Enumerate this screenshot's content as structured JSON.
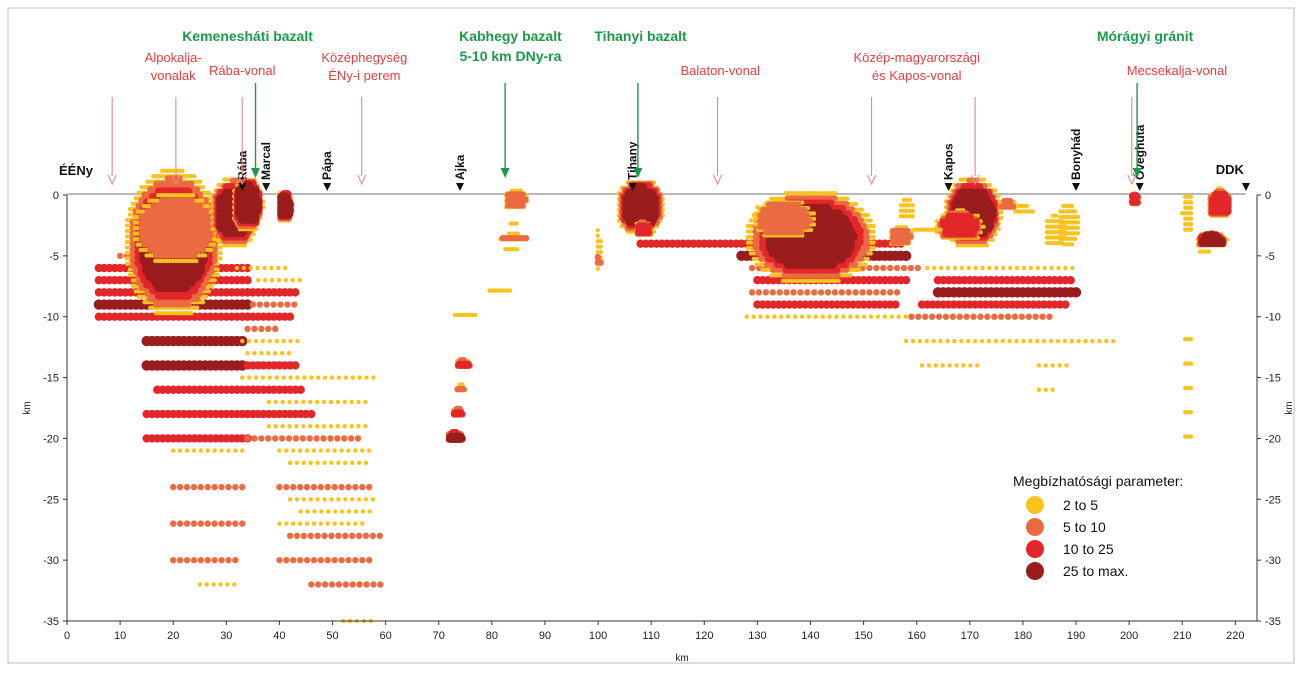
{
  "chart_data": {
    "type": "scatter",
    "x_axis": {
      "label": "km",
      "range": [
        0,
        220
      ],
      "ticks": [
        0,
        10,
        20,
        30,
        40,
        50,
        60,
        70,
        80,
        90,
        100,
        110,
        120,
        130,
        140,
        150,
        160,
        170,
        180,
        190,
        200,
        210,
        220
      ]
    },
    "y_axis": {
      "label": "km",
      "range": [
        -35,
        0
      ],
      "ticks": [
        0,
        -5,
        -10,
        -15,
        -20,
        -25,
        -30,
        -35
      ],
      "mirrored_right": true
    },
    "grid": false,
    "ends": [
      {
        "label": "ÉÉNy",
        "x": 0
      },
      {
        "label": "DDK",
        "x": 222
      }
    ],
    "localities": [
      {
        "label": "Rába",
        "x": 33
      },
      {
        "label": "Marcal",
        "x": 37.5
      },
      {
        "label": "Pápa",
        "x": 49
      },
      {
        "label": "Ajka",
        "x": 74
      },
      {
        "label": "Tihany",
        "x": 106.5
      },
      {
        "label": "Kapos",
        "x": 166
      },
      {
        "label": "Bonyhád",
        "x": 190
      },
      {
        "label": "Óveghuta",
        "x": 202
      }
    ],
    "tectonic_lines": [
      {
        "lines": [
          "Alpokalja-",
          "vonalak"
        ],
        "x": 20,
        "arrows_x": [
          8.5,
          20.5
        ]
      },
      {
        "lines": [
          "Rába-vonal"
        ],
        "x": 33,
        "arrows_x": [
          33
        ]
      },
      {
        "lines": [
          "Középhegység",
          "ÉNy-i perem"
        ],
        "x": 56,
        "arrows_x": [
          55.5
        ]
      },
      {
        "lines": [
          "Balaton-vonal"
        ],
        "x": 123,
        "arrows_x": [
          122.5
        ]
      },
      {
        "lines": [
          "Közép-magyarországi",
          "és Kapos-vonal"
        ],
        "x": 160,
        "arrows_x": [
          151.5,
          171
        ]
      },
      {
        "lines": [
          "Mecsekalja-vonal"
        ],
        "x": 209,
        "arrows_x": [
          200.5
        ]
      }
    ],
    "rock_units": [
      {
        "lines": [
          "Kemenesháti bazalt"
        ],
        "x": 34,
        "arrow_x": 35.5
      },
      {
        "lines": [
          "Kabhegy bazalt",
          "5-10 km DNy-ra"
        ],
        "x": 83.5,
        "arrow_x": 82.5
      },
      {
        "lines": [
          "Tihanyi bazalt"
        ],
        "x": 108,
        "arrow_x": 107.5
      },
      {
        "lines": [
          "Mórágyi gránit"
        ],
        "x": 203,
        "arrow_x": 201.5
      }
    ],
    "legend": {
      "title": "Megbízhatósági parameter:",
      "placement": "bottom-right",
      "items": [
        {
          "label": "2 to 5",
          "color": "#f9c21c",
          "size": 1
        },
        {
          "label": "5 to 10",
          "color": "#ea6b42",
          "size": 2
        },
        {
          "label": "10 to 25",
          "color": "#e3262a",
          "size": 3
        },
        {
          "label": "25 to max.",
          "color": "#9a1c1c",
          "size": 4
        }
      ]
    },
    "rows": [
      [
        -12,
        15,
        33,
        4
      ],
      [
        -14,
        15,
        33,
        4
      ],
      [
        -16,
        17,
        35,
        3
      ],
      [
        -18,
        15,
        34,
        3
      ],
      [
        -20,
        15,
        34,
        3
      ],
      [
        -21,
        20,
        34,
        1
      ],
      [
        -24,
        20,
        33,
        2
      ],
      [
        -27,
        20,
        33,
        2
      ],
      [
        -30,
        20,
        32,
        2
      ],
      [
        -32,
        25,
        32,
        1
      ],
      [
        -6,
        6,
        34,
        3
      ],
      [
        -7,
        6,
        34,
        3
      ],
      [
        -8,
        6,
        34,
        3
      ],
      [
        -9,
        6,
        34,
        4
      ],
      [
        -10,
        6,
        34,
        3
      ],
      [
        -5,
        10,
        27,
        2
      ],
      [
        -4,
        13,
        27,
        1
      ],
      [
        -10,
        33,
        42,
        3
      ],
      [
        -8,
        34,
        43,
        3
      ],
      [
        -9,
        35,
        44,
        2
      ],
      [
        -6,
        32,
        42,
        1
      ],
      [
        -7,
        36,
        44,
        1
      ],
      [
        -11,
        34,
        40,
        2
      ],
      [
        -12,
        33,
        44,
        1
      ],
      [
        -13,
        34,
        43,
        1
      ],
      [
        -14,
        34,
        43,
        3
      ],
      [
        -15,
        33,
        58,
        1
      ],
      [
        -16,
        36,
        44,
        3
      ],
      [
        -17,
        38,
        57,
        1
      ],
      [
        -18,
        34,
        46,
        3
      ],
      [
        -19,
        38,
        57,
        1
      ],
      [
        -20,
        34,
        56,
        2
      ],
      [
        -21,
        40,
        57,
        1
      ],
      [
        -22,
        42,
        57,
        1
      ],
      [
        -24,
        40,
        58,
        2
      ],
      [
        -25,
        42,
        58,
        1
      ],
      [
        -26,
        44,
        58,
        1
      ],
      [
        -27,
        40,
        56,
        1
      ],
      [
        -28,
        42,
        60,
        2
      ],
      [
        -30,
        40,
        58,
        2
      ],
      [
        -32,
        46,
        60,
        2
      ],
      [
        -35,
        52,
        58,
        1
      ],
      [
        -4,
        108,
        148,
        3
      ],
      [
        -5,
        127,
        158,
        4
      ],
      [
        -6,
        129,
        161,
        2
      ],
      [
        -7,
        130,
        158,
        3
      ],
      [
        -8,
        129,
        157,
        2
      ],
      [
        -9,
        130,
        156,
        3
      ],
      [
        -10,
        128,
        163,
        1
      ],
      [
        -3,
        131,
        145,
        4
      ],
      [
        -2,
        133,
        144,
        3
      ],
      [
        -1,
        130,
        145,
        1
      ],
      [
        -4,
        149,
        157,
        3
      ],
      [
        -7,
        164,
        189,
        3
      ],
      [
        -8,
        164,
        190,
        4
      ],
      [
        -9,
        161,
        188,
        3
      ],
      [
        -10,
        159,
        185,
        2
      ],
      [
        -6,
        162,
        190,
        1
      ],
      [
        -12,
        158,
        197,
        1
      ],
      [
        -14,
        161,
        172,
        1
      ],
      [
        -14,
        183,
        189,
        1
      ],
      [
        -16,
        183,
        186,
        1
      ]
    ],
    "blobs": [
      [
        20,
        -4,
        6,
        4,
        4
      ],
      [
        20.5,
        -2.8,
        7,
        2.6,
        2
      ],
      [
        31.5,
        -1.5,
        3,
        2,
        4
      ],
      [
        34,
        -0.8,
        2,
        1.6,
        4
      ],
      [
        41,
        -1,
        1,
        1,
        4
      ],
      [
        108,
        -1,
        3,
        1.6,
        4
      ],
      [
        108.5,
        -2.9,
        1.3,
        0.6,
        3
      ],
      [
        140,
        -3.5,
        8,
        2.6,
        4
      ],
      [
        135,
        -2,
        5,
        1.5,
        2
      ],
      [
        170.5,
        -1.5,
        3.6,
        2,
        4
      ],
      [
        168,
        -2.6,
        3.5,
        1,
        3
      ],
      [
        186,
        -3,
        2,
        1.4,
        1
      ],
      [
        215.5,
        -3.8,
        2,
        0.5,
        4
      ],
      [
        217,
        -0.8,
        1.8,
        1,
        3
      ],
      [
        201,
        -0.5,
        0.8,
        0.5,
        3
      ],
      [
        74.5,
        -14,
        1.2,
        0.4,
        3
      ],
      [
        74,
        -16,
        1,
        0.4,
        2
      ],
      [
        73.5,
        -18,
        1,
        0.4,
        3
      ],
      [
        73,
        -20,
        1.2,
        0.4,
        4
      ],
      [
        100,
        -4.5,
        0.6,
        2,
        1
      ],
      [
        100,
        -5.5,
        0.6,
        0.5,
        2
      ],
      [
        84,
        -3.6,
        2.5,
        0.4,
        2
      ],
      [
        84,
        -2.5,
        1,
        0.3,
        1
      ],
      [
        84.5,
        -0.5,
        2,
        0.8,
        2
      ],
      [
        81.5,
        -8,
        2.5,
        0.3,
        1
      ],
      [
        75,
        -10,
        2.5,
        0.3,
        1
      ],
      [
        83.5,
        -4.6,
        1.5,
        0.3,
        1
      ],
      [
        211,
        -1.5,
        1,
        1.8,
        1
      ],
      [
        211,
        -12,
        1,
        0.3,
        1
      ],
      [
        211,
        -14,
        1,
        0.3,
        1
      ],
      [
        211,
        -16,
        1,
        0.3,
        1
      ],
      [
        211,
        -18,
        1,
        0.3,
        1
      ],
      [
        211,
        -20,
        1,
        0.3,
        1
      ],
      [
        214,
        -4.8,
        1.2,
        0.3,
        1
      ],
      [
        162,
        -3,
        3,
        0.3,
        1
      ],
      [
        157,
        -3.5,
        2,
        0.8,
        2
      ],
      [
        188.5,
        -2.5,
        2,
        2,
        1
      ],
      [
        177,
        -0.9,
        1.6,
        0.5,
        2
      ],
      [
        180,
        -1.3,
        2,
        0.5,
        1
      ],
      [
        158,
        -1.2,
        1.5,
        1,
        1
      ]
    ]
  }
}
